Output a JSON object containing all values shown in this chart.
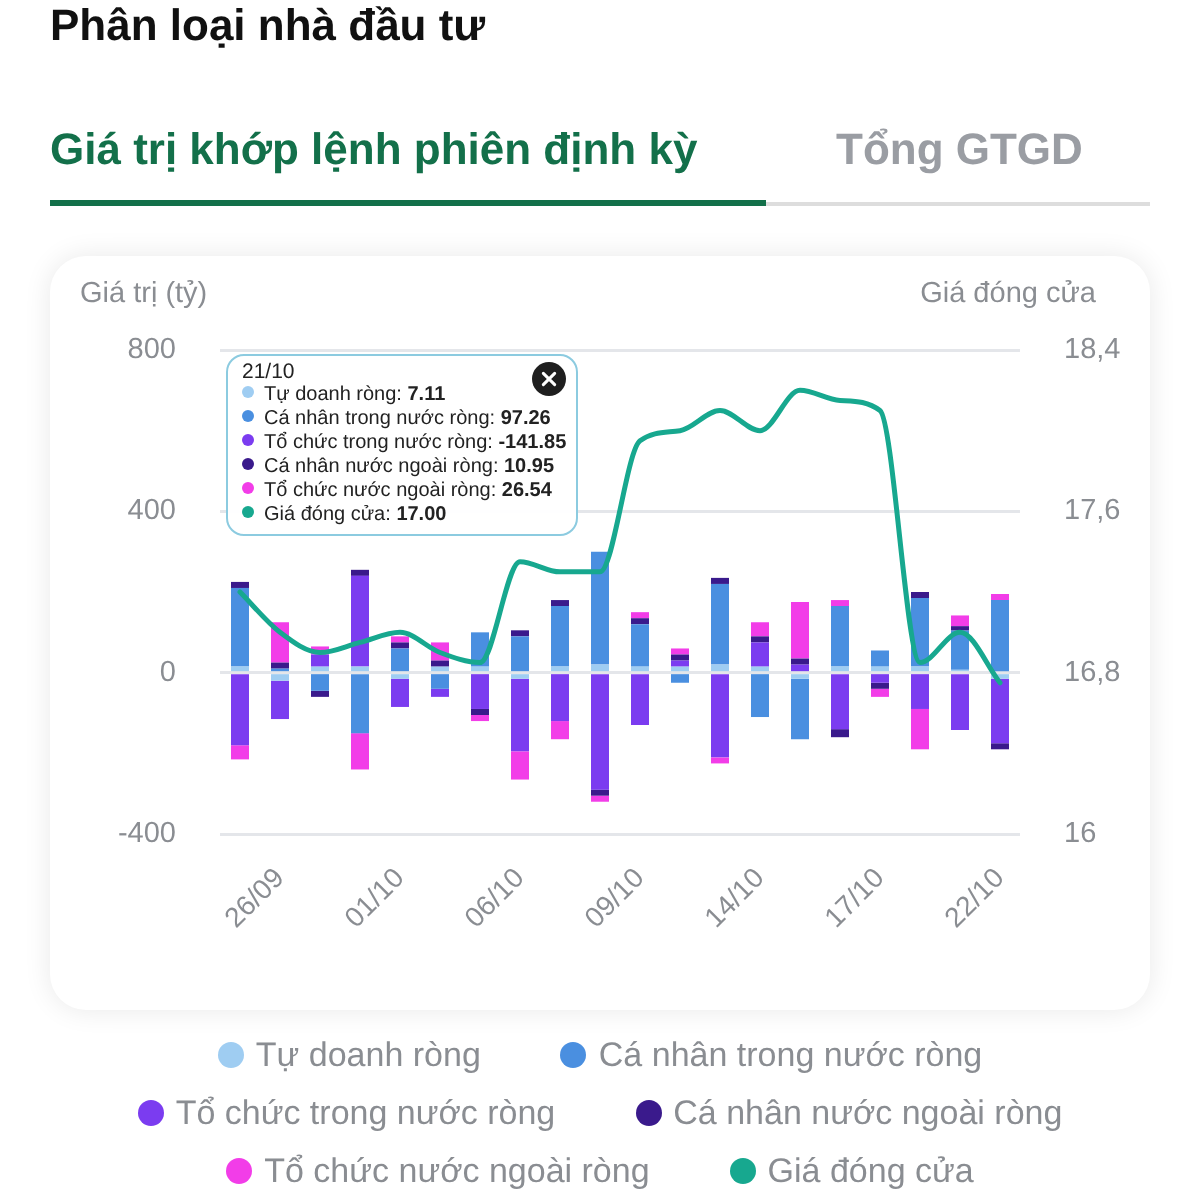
{
  "chart_data": {
    "type": "bar",
    "title": "Phân loại nhà đầu tư",
    "subtitle": "Giá trị khớp lệnh phiên định kỳ",
    "annotations": [
      "Tổng GTGD",
      "21/10",
      "Tự doanh ròng: 7.11",
      "Cá nhân trong nước ròng: 97.26",
      "Tổ chức trong nước ròng: -141.85",
      "Cá nhân nước ngoài ròng: 10.95",
      "Tổ chức nước ngoài ròng: 26.54",
      "Giá đóng cửa: 17.00"
    ],
    "ylabel": "Giá trị (tỷ)",
    "y2label": "Giá đóng cửa",
    "categories": [
      null,
      "26/09",
      null,
      null,
      "01/10",
      null,
      null,
      "06/10",
      null,
      null,
      "09/10",
      null,
      null,
      "14/10",
      null,
      null,
      "17/10",
      null,
      null,
      "22/10"
    ],
    "series": [
      {
        "name": "Tự doanh ròng",
        "color": "#9fcdf2",
        "values": [
          15,
          -20,
          15,
          15,
          -15,
          15,
          15,
          -15,
          15,
          20,
          15,
          15,
          20,
          15,
          -15,
          15,
          15,
          15,
          7.11,
          -15
        ]
      },
      {
        "name": "Cá nhân trong nước ròng",
        "color": "#4a8fe0",
        "values": [
          195,
          10,
          -45,
          -150,
          60,
          -40,
          85,
          90,
          150,
          280,
          105,
          -25,
          200,
          -110,
          -150,
          150,
          40,
          170,
          97.26,
          180
        ]
      },
      {
        "name": "Tổ chức trong nước ròng",
        "color": "#7b3cf0",
        "values": [
          -180,
          -95,
          30,
          225,
          -70,
          -20,
          -90,
          -180,
          -120,
          -290,
          -130,
          15,
          -210,
          60,
          20,
          -140,
          -25,
          -90,
          -141.85,
          -160
        ]
      },
      {
        "name": "Cá nhân nước ngoài ròng",
        "color": "#3a1a8c",
        "values": [
          15,
          15,
          -15,
          15,
          15,
          15,
          -15,
          15,
          15,
          -15,
          15,
          15,
          15,
          15,
          15,
          -20,
          -15,
          15,
          10.95,
          -15
        ]
      },
      {
        "name": "Tổ chức nước ngoài ròng",
        "color": "#f23de8",
        "values": [
          -35,
          100,
          20,
          -90,
          15,
          45,
          -15,
          -70,
          -45,
          -15,
          15,
          15,
          -15,
          35,
          140,
          15,
          -20,
          -100,
          26.54,
          15
        ]
      },
      {
        "name": "Giá đóng cửa",
        "type": "line",
        "axis": "y2",
        "marker": "none",
        "color": "#17a88f",
        "values": [
          17.2,
          17.0,
          16.9,
          16.95,
          17.0,
          16.9,
          16.85,
          17.35,
          17.3,
          17.3,
          17.95,
          18.0,
          18.1,
          18.0,
          18.2,
          18.15,
          18.1,
          16.85,
          17.0,
          16.75
        ]
      }
    ],
    "stacked": true,
    "ylim": [
      -400,
      800
    ],
    "yticks": [
      -400,
      0,
      400,
      800
    ],
    "y2lim": [
      16,
      18.4
    ],
    "y2ticks": [
      16,
      {
        "value": 16.8,
        "label": "16,8"
      },
      {
        "value": 17.6,
        "label": "17,6"
      },
      {
        "value": 18.4,
        "label": "18,4"
      }
    ],
    "grid": "y",
    "legend": "bottom"
  }
}
